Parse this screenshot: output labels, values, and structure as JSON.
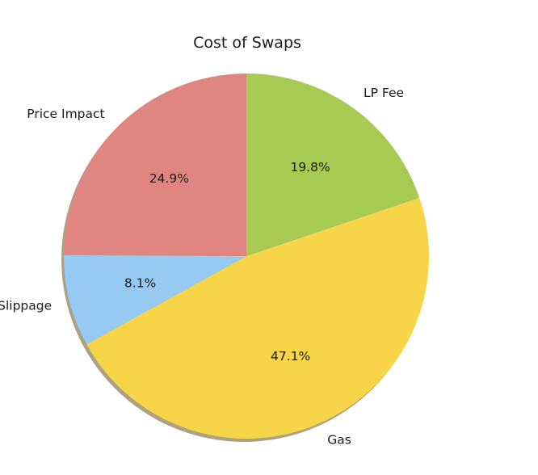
{
  "chart_data": {
    "type": "pie",
    "title": "Cost of Swaps",
    "start_angle_deg": 90,
    "direction": "counterclockwise",
    "shadow": true,
    "slices": [
      {
        "label": "Price Impact",
        "value": 24.9,
        "pct_label": "24.9%",
        "color": "#e0857f"
      },
      {
        "label": "Slippage",
        "value": 8.1,
        "pct_label": "8.1%",
        "color": "#96caf2"
      },
      {
        "label": "Gas",
        "value": 47.1,
        "pct_label": "47.1%",
        "color": "#f8d548"
      },
      {
        "label": "LP Fee",
        "value": 19.8,
        "pct_label": "19.8%",
        "color": "#a7cb52"
      }
    ]
  }
}
